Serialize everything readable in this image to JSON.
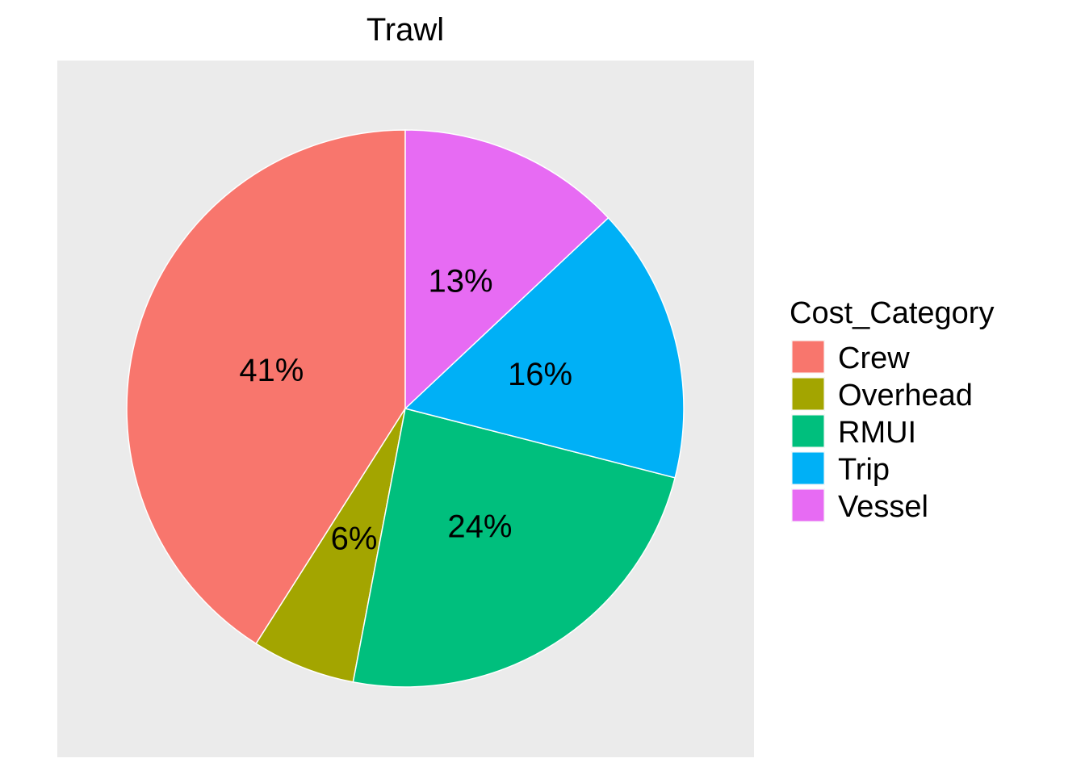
{
  "chart_data": {
    "type": "pie",
    "title": "Trawl",
    "legend_title": "Cost_Category",
    "legend_position": "right",
    "slices": [
      {
        "label": "Crew",
        "value": 41,
        "display": "41%",
        "color": "#F8766D"
      },
      {
        "label": "Overhead",
        "value": 6,
        "display": "6%",
        "color": "#A3A500"
      },
      {
        "label": "RMUI",
        "value": 24,
        "display": "24%",
        "color": "#00BF7D"
      },
      {
        "label": "Trip",
        "value": 16,
        "display": "16%",
        "color": "#00B0F6"
      },
      {
        "label": "Vessel",
        "value": 13,
        "display": "13%",
        "color": "#E76BF3"
      }
    ],
    "background_color": "#EBEBEB"
  }
}
